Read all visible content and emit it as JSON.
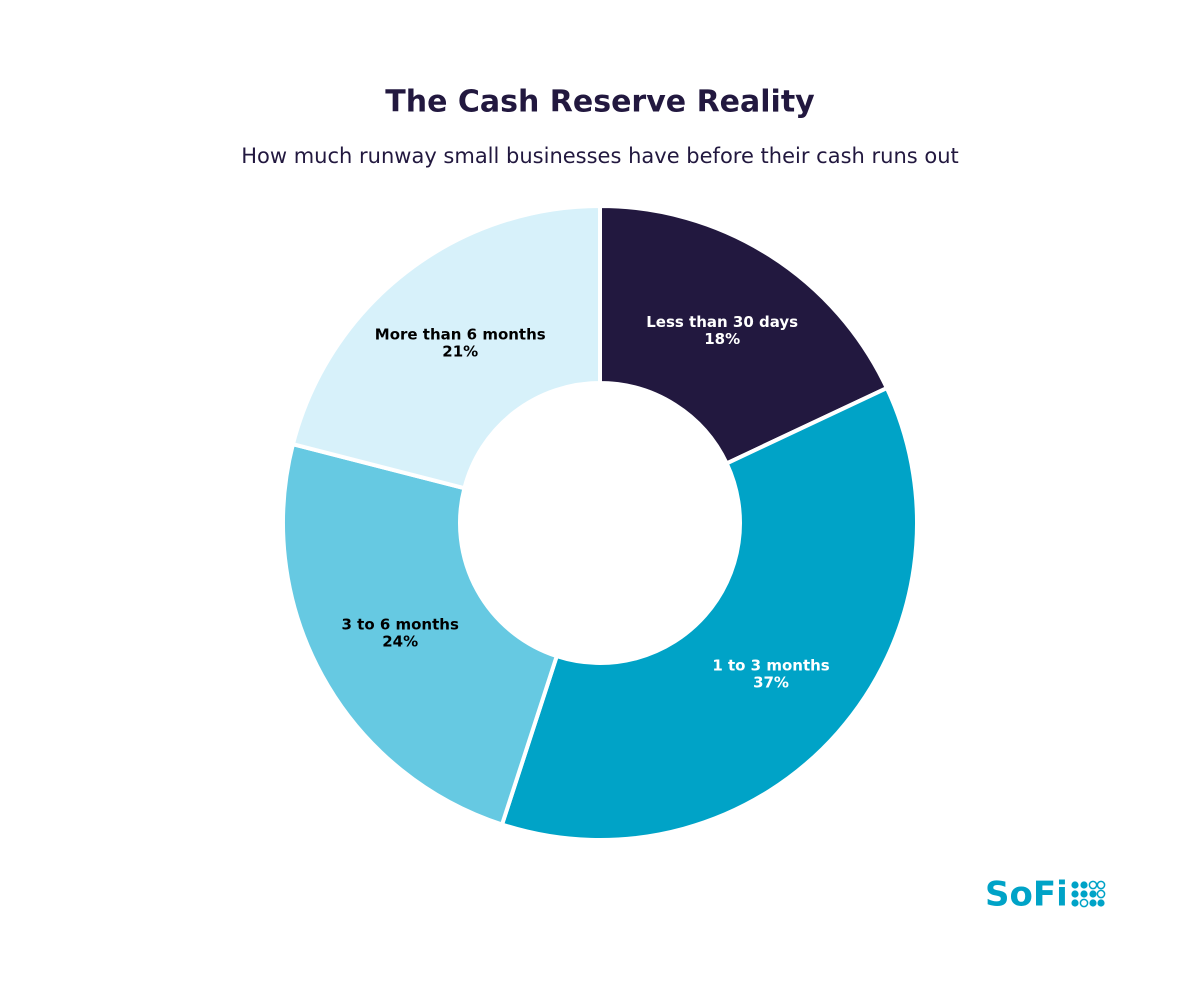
{
  "chart_data": {
    "type": "donut",
    "title": "The Cash Reserve Reality",
    "subtitle": "How much runway small businesses have before their cash runs out",
    "categories": [
      "Less than 30 days",
      "1 to 3 months",
      "3 to 6 months",
      "More than 6 months"
    ],
    "values": [
      18,
      37,
      24,
      21
    ],
    "value_labels": [
      "18%",
      "37%",
      "24%",
      "21%"
    ],
    "colors": [
      "#22183f",
      "#00a3c7",
      "#66c9e2",
      "#d7f1fa"
    ]
  },
  "brand": "SoFi"
}
